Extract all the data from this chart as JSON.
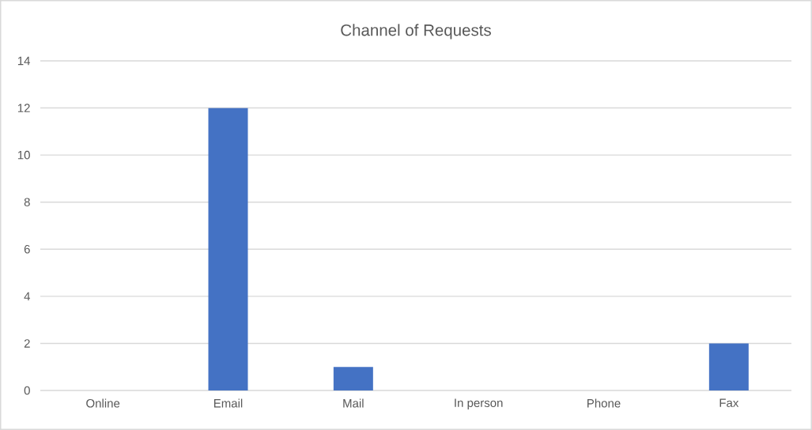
{
  "chart_data": {
    "type": "bar",
    "title": "Channel of Requests",
    "categories": [
      "Online",
      "Email",
      "Mail",
      "In person",
      "Phone",
      "Fax"
    ],
    "values": [
      0,
      12,
      1,
      0,
      0,
      2
    ],
    "color": "#4472c4",
    "ylim": [
      0,
      14
    ],
    "yticks": [
      0,
      2,
      4,
      6,
      8,
      10,
      12,
      14
    ],
    "grid": "y"
  }
}
